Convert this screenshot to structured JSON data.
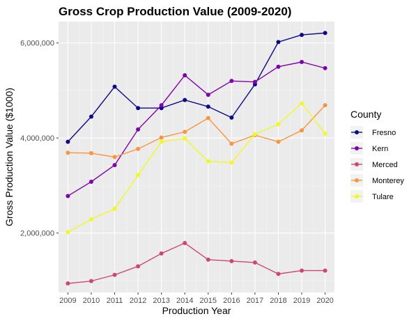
{
  "chart_data": {
    "type": "line",
    "title": "Gross Crop Production Value (2009-2020)",
    "xlabel": "Production Year",
    "ylabel": "Gross Production Value ($1000)",
    "x": [
      2009,
      2010,
      2011,
      2012,
      2013,
      2014,
      2015,
      2016,
      2017,
      2018,
      2019,
      2020
    ],
    "x_tick_labels": [
      "2009",
      "2010",
      "2011",
      "2012",
      "2013",
      "2014",
      "2015",
      "2016",
      "2017",
      "2018",
      "2019",
      "2020"
    ],
    "y_ticks": [
      2000000,
      4000000,
      6000000
    ],
    "y_tick_labels": [
      "2,000,000",
      "4,000,000",
      "6,000,000"
    ],
    "ylim": [
      750000,
      6450000
    ],
    "xlim": [
      2008.6,
      2020.4
    ],
    "legend_title": "County",
    "legend_position": "right",
    "series": [
      {
        "name": "Fresno",
        "color": "#0d0887",
        "values": [
          3920000,
          4450000,
          5080000,
          4630000,
          4630000,
          4800000,
          4660000,
          4430000,
          5130000,
          6020000,
          6170000,
          6210000
        ]
      },
      {
        "name": "Kern",
        "color": "#7e03a8",
        "values": [
          2780000,
          3080000,
          3430000,
          4180000,
          4690000,
          5320000,
          4910000,
          5200000,
          5180000,
          5500000,
          5600000,
          5470000
        ]
      },
      {
        "name": "Merced",
        "color": "#cc4778",
        "values": [
          940000,
          990000,
          1120000,
          1300000,
          1570000,
          1790000,
          1440000,
          1410000,
          1380000,
          1140000,
          1210000,
          1210000
        ]
      },
      {
        "name": "Monterey",
        "color": "#f89540",
        "values": [
          3690000,
          3680000,
          3600000,
          3770000,
          4010000,
          4130000,
          4420000,
          3880000,
          4060000,
          3920000,
          4160000,
          4690000
        ]
      },
      {
        "name": "Tulare",
        "color": "#f0f921",
        "values": [
          2020000,
          2290000,
          2510000,
          3220000,
          3920000,
          3990000,
          3510000,
          3480000,
          4080000,
          4290000,
          4730000,
          4090000
        ]
      }
    ]
  }
}
